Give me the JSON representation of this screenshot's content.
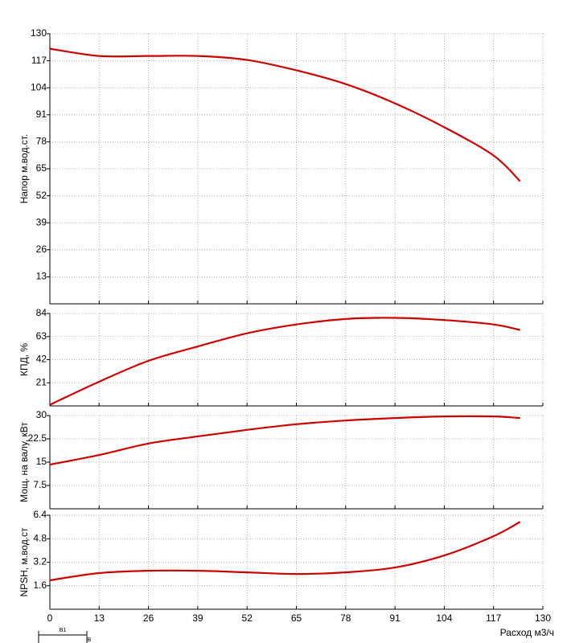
{
  "chart_data": [
    {
      "type": "line",
      "ylabel": "Напор м.вод.ст.",
      "x": [
        0,
        13,
        26,
        39,
        52,
        65,
        78,
        91,
        104,
        117,
        124
      ],
      "values": [
        122.8,
        119.3,
        119.3,
        119.3,
        117.4,
        112.4,
        105.8,
        96.5,
        85,
        71.4,
        59
      ],
      "color": "#cc0000",
      "xlim": [
        0,
        130
      ],
      "xticks": [
        0,
        13,
        26,
        39,
        52,
        65,
        78,
        91,
        104,
        117,
        130
      ],
      "ylim": [
        0,
        130
      ],
      "yticks": [
        13,
        26,
        39,
        52,
        65,
        78,
        91,
        104,
        117,
        130
      ],
      "grid": true
    },
    {
      "type": "line",
      "ylabel": "КПД, %",
      "x": [
        0,
        13,
        26,
        39,
        52,
        65,
        78,
        91,
        104,
        117,
        124
      ],
      "values": [
        1,
        22,
        41,
        54,
        66,
        74,
        79,
        80,
        78,
        74,
        69
      ],
      "color": "#cc0000",
      "xlim": [
        0,
        130
      ],
      "xticks": [
        0,
        13,
        26,
        39,
        52,
        65,
        78,
        91,
        104,
        117,
        130
      ],
      "ylim": [
        0,
        84
      ],
      "yticks": [
        21,
        42,
        63,
        84
      ],
      "grid": true
    },
    {
      "type": "line",
      "ylabel": "Мощ. на валу, кВт",
      "x": [
        0,
        13,
        26,
        39,
        52,
        65,
        78,
        91,
        104,
        117,
        124
      ],
      "values": [
        14.2,
        17.3,
        21,
        23.3,
        25.4,
        27.2,
        28.4,
        29.2,
        29.7,
        29.7,
        29.2
      ],
      "color": "#cc0000",
      "xlim": [
        0,
        130
      ],
      "xticks": [
        0,
        13,
        26,
        39,
        52,
        65,
        78,
        91,
        104,
        117,
        130
      ],
      "ylim": [
        0,
        30
      ],
      "yticks": [
        7.5,
        15,
        22.5,
        30
      ],
      "grid": true
    },
    {
      "type": "line",
      "ylabel": "NPSH, м.вод.ст",
      "xlabel": "Расход м3/ч",
      "x": [
        0,
        13,
        26,
        39,
        52,
        65,
        78,
        91,
        104,
        117,
        124
      ],
      "values": [
        1.97,
        2.46,
        2.62,
        2.62,
        2.51,
        2.4,
        2.51,
        2.84,
        3.66,
        4.97,
        5.95
      ],
      "color": "#cc0000",
      "xlim": [
        0,
        130
      ],
      "xticks": [
        0,
        13,
        26,
        39,
        52,
        65,
        78,
        91,
        104,
        117,
        130
      ],
      "ylim": [
        0,
        6.4
      ],
      "yticks": [
        1.6,
        3.2,
        4.8,
        6.4
      ],
      "grid": true,
      "annotations": [
        "B1",
        "B"
      ]
    }
  ]
}
